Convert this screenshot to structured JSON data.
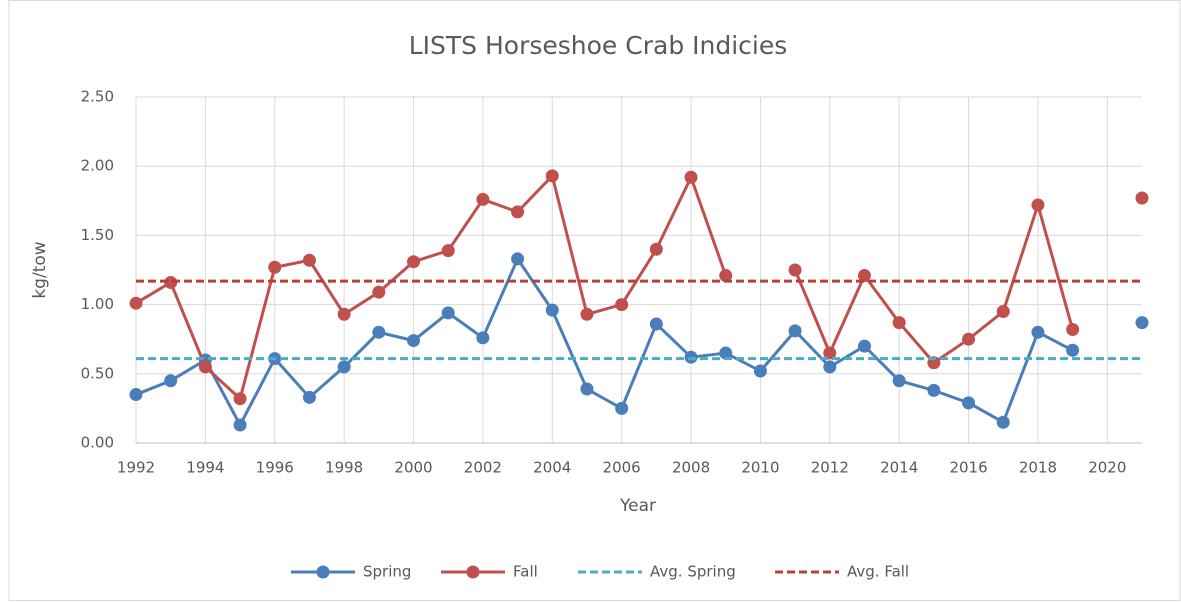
{
  "chart_data": {
    "type": "line",
    "title": "LISTS Horseshoe Crab Indicies",
    "xlabel": "Year",
    "ylabel": "kg/tow",
    "x": [
      1992,
      1993,
      1994,
      1995,
      1996,
      1997,
      1998,
      1999,
      2000,
      2001,
      2002,
      2003,
      2004,
      2005,
      2006,
      2007,
      2008,
      2009,
      2010,
      2011,
      2012,
      2013,
      2014,
      2015,
      2016,
      2017,
      2018,
      2019,
      2020,
      2021
    ],
    "series": [
      {
        "name": "Spring",
        "color": "#4a7ebb",
        "marker": true,
        "dashed": false,
        "values": [
          0.35,
          0.45,
          0.6,
          0.13,
          0.61,
          0.33,
          0.55,
          0.8,
          0.74,
          0.94,
          0.76,
          1.33,
          0.96,
          0.39,
          0.25,
          0.86,
          0.62,
          0.65,
          0.52,
          0.81,
          0.55,
          0.7,
          0.45,
          0.38,
          0.29,
          0.15,
          0.8,
          0.67,
          null,
          0.87
        ]
      },
      {
        "name": "Fall",
        "color": "#c0504d",
        "marker": true,
        "dashed": false,
        "values": [
          1.01,
          1.16,
          0.55,
          0.32,
          1.27,
          1.32,
          0.93,
          1.09,
          1.31,
          1.39,
          1.76,
          1.67,
          1.93,
          0.93,
          1.0,
          1.4,
          1.92,
          1.21,
          null,
          1.25,
          0.65,
          1.21,
          0.87,
          0.58,
          0.75,
          0.95,
          1.72,
          0.82,
          null,
          1.77
        ]
      },
      {
        "name": "Avg. Spring",
        "color": "#4bacc6",
        "marker": false,
        "dashed": true,
        "values": [
          0.61,
          0.61,
          0.61,
          0.61,
          0.61,
          0.61,
          0.61,
          0.61,
          0.61,
          0.61,
          0.61,
          0.61,
          0.61,
          0.61,
          0.61,
          0.61,
          0.61,
          0.61,
          0.61,
          0.61,
          0.61,
          0.61,
          0.61,
          0.61,
          0.61,
          0.61,
          0.61,
          0.61,
          0.61,
          0.61
        ]
      },
      {
        "name": "Avg. Fall",
        "color": "#b8403c",
        "marker": false,
        "dashed": true,
        "values": [
          1.17,
          1.17,
          1.17,
          1.17,
          1.17,
          1.17,
          1.17,
          1.17,
          1.17,
          1.17,
          1.17,
          1.17,
          1.17,
          1.17,
          1.17,
          1.17,
          1.17,
          1.17,
          1.17,
          1.17,
          1.17,
          1.17,
          1.17,
          1.17,
          1.17,
          1.17,
          1.17,
          1.17,
          1.17,
          1.17
        ]
      }
    ],
    "xlim": [
      1992,
      2021
    ],
    "xticks": [
      1992,
      1994,
      1996,
      1998,
      2000,
      2002,
      2004,
      2006,
      2008,
      2010,
      2012,
      2014,
      2016,
      2018,
      2020
    ],
    "ylim": [
      0,
      2.5
    ],
    "yticks": [
      {
        "value": 0,
        "label": "0.00"
      },
      {
        "value": 0.5,
        "label": "0.50"
      },
      {
        "value": 1,
        "label": "1.00"
      },
      {
        "value": 1.5,
        "label": "1.50"
      },
      {
        "value": 2,
        "label": "2.00"
      },
      {
        "value": 2.5,
        "label": "2.50"
      }
    ],
    "grid": true,
    "legend": "bottom"
  }
}
